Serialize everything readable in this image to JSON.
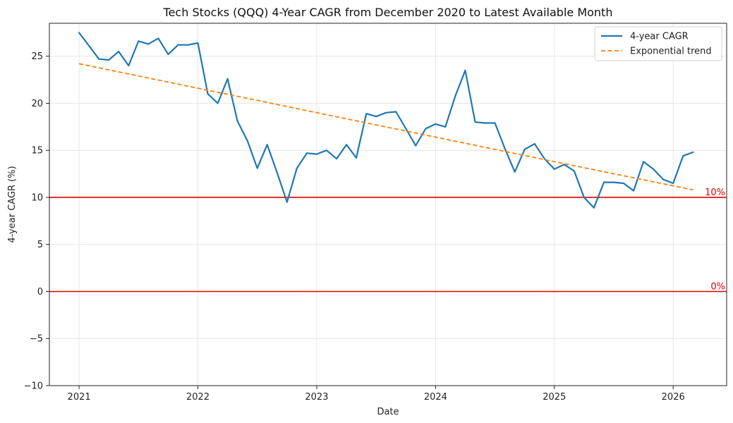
{
  "chart_data": {
    "type": "line",
    "title": "Tech Stocks (QQQ) 4-Year CAGR from December 2020 to Latest Available Month",
    "xlabel": "Date",
    "ylabel": "4-year CAGR (%)",
    "xlim": [
      2020.75,
      2026.45
    ],
    "ylim": [
      -10,
      28.5
    ],
    "x_ticks": [
      2021,
      2022,
      2023,
      2024,
      2025,
      2026
    ],
    "x_tick_labels": [
      "2021",
      "2022",
      "2023",
      "2024",
      "2025",
      "2026"
    ],
    "y_ticks": [
      -10,
      -5,
      0,
      5,
      10,
      15,
      20,
      25
    ],
    "y_tick_labels": [
      "−10",
      "−5",
      "0",
      "5",
      "10",
      "15",
      "20",
      "25"
    ],
    "grid": true,
    "legend_position": "top-right",
    "series": [
      {
        "name": "4-year CAGR",
        "style": "solid",
        "color": "#1f77b4",
        "x": [
          2021.0,
          2021.083,
          2021.167,
          2021.25,
          2021.333,
          2021.417,
          2021.5,
          2021.583,
          2021.667,
          2021.75,
          2021.833,
          2021.917,
          2022.0,
          2022.083,
          2022.167,
          2022.25,
          2022.333,
          2022.417,
          2022.5,
          2022.583,
          2022.667,
          2022.75,
          2022.833,
          2022.917,
          2023.0,
          2023.083,
          2023.167,
          2023.25,
          2023.333,
          2023.417,
          2023.5,
          2023.583,
          2023.667,
          2023.75,
          2023.833,
          2023.917,
          2024.0,
          2024.083,
          2024.167,
          2024.25,
          2024.333,
          2024.417,
          2024.5,
          2024.583,
          2024.667,
          2024.75,
          2024.833,
          2024.917,
          2025.0,
          2025.083,
          2025.167,
          2025.25,
          2025.333,
          2025.417,
          2025.5,
          2025.583,
          2025.667,
          2025.75,
          2025.833,
          2025.917,
          2026.0,
          2026.083,
          2026.167
        ],
        "y": [
          27.5,
          26.1,
          24.7,
          24.6,
          25.5,
          24.0,
          26.6,
          26.3,
          26.9,
          25.2,
          26.2,
          26.2,
          26.4,
          21.0,
          20.0,
          22.6,
          18.1,
          16.0,
          13.1,
          15.6,
          12.6,
          9.5,
          13.1,
          14.7,
          14.6,
          15.0,
          14.1,
          15.6,
          14.2,
          18.9,
          18.6,
          19.0,
          19.1,
          17.3,
          15.5,
          17.3,
          17.8,
          17.5,
          20.8,
          23.5,
          18.0,
          17.9,
          17.9,
          15.2,
          12.7,
          15.1,
          15.7,
          14.1,
          13.0,
          13.5,
          12.8,
          10.0,
          8.9,
          11.6,
          11.6,
          11.5,
          10.7,
          13.8,
          13.0,
          11.9,
          11.5,
          14.4,
          14.8
        ]
      },
      {
        "name": "Exponential trend",
        "style": "dashed",
        "color": "#ff7f0e",
        "x": [
          2021.0,
          2022.0,
          2023.0,
          2024.0,
          2025.0,
          2026.167
        ],
        "y": [
          24.2,
          21.6,
          19.0,
          16.4,
          13.8,
          10.8
        ]
      }
    ],
    "reference_lines": [
      {
        "y": 10,
        "label": "10%",
        "color": "#e00000"
      },
      {
        "y": 0,
        "label": "0%",
        "color": "#e00000"
      }
    ]
  }
}
